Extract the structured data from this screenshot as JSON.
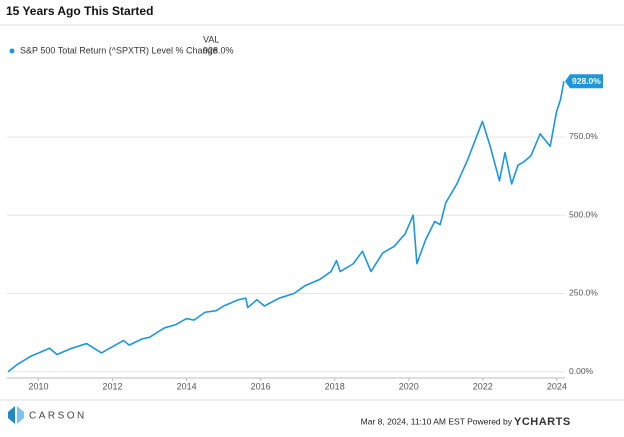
{
  "chart_data": {
    "type": "line",
    "title": "15 Years Ago This Started",
    "legend_header": "VAL",
    "x": [
      2009.18,
      2009.45,
      2009.8,
      2010.0,
      2010.3,
      2010.5,
      2010.9,
      2011.3,
      2011.7,
      2012.0,
      2012.3,
      2012.45,
      2012.8,
      2013.0,
      2013.4,
      2013.7,
      2014.0,
      2014.2,
      2014.5,
      2014.8,
      2015.0,
      2015.4,
      2015.6,
      2015.65,
      2015.9,
      2016.1,
      2016.5,
      2016.9,
      2017.2,
      2017.6,
      2017.9,
      2018.05,
      2018.15,
      2018.5,
      2018.75,
      2018.98,
      2019.3,
      2019.6,
      2019.9,
      2020.12,
      2020.22,
      2020.45,
      2020.7,
      2020.85,
      2021.0,
      2021.3,
      2021.6,
      2021.99,
      2022.2,
      2022.45,
      2022.6,
      2022.78,
      2022.95,
      2023.1,
      2023.3,
      2023.55,
      2023.82,
      2023.99,
      2024.1,
      2024.19
    ],
    "series": [
      {
        "name": "S&P 500 Total Return (^SPXTR) Level % Change",
        "color": "#1e96dc",
        "values": [
          0,
          25,
          50,
          60,
          75,
          55,
          75,
          90,
          60,
          80,
          100,
          85,
          105,
          110,
          140,
          150,
          170,
          165,
          190,
          195,
          210,
          230,
          235,
          205,
          230,
          210,
          235,
          250,
          275,
          295,
          320,
          355,
          320,
          345,
          385,
          320,
          380,
          400,
          440,
          500,
          345,
          420,
          480,
          470,
          540,
          600,
          680,
          800,
          720,
          610,
          700,
          600,
          660,
          670,
          690,
          760,
          720,
          830,
          870,
          928
        ],
        "last_value": {
          "value": 928,
          "label": "928.0%"
        }
      }
    ],
    "xlim": [
      2009.15,
      2024.22
    ],
    "xticks": [
      2010,
      2012,
      2014,
      2016,
      2018,
      2020,
      2022,
      2024
    ],
    "ylim": [
      -20,
      980
    ],
    "yticks": [
      {
        "value": 0,
        "label": "0.00%"
      },
      {
        "value": 250,
        "label": "250.0%"
      },
      {
        "value": 500,
        "label": "500.0%"
      },
      {
        "value": 750,
        "label": "750.0%"
      }
    ],
    "grid": true,
    "footer": {
      "logo": "CARSON",
      "stamp": "Mar 8, 2024, 11:10 AM EST Powered by",
      "brand": "YCHARTS"
    }
  }
}
